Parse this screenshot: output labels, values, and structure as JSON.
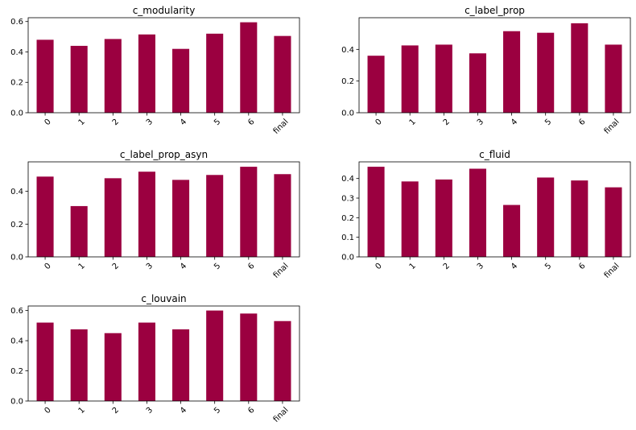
{
  "chart_data": [
    {
      "type": "bar",
      "title": "c_modularity",
      "categories": [
        "0",
        "1",
        "2",
        "3",
        "4",
        "5",
        "6",
        "final"
      ],
      "values": [
        0.48,
        0.44,
        0.485,
        0.515,
        0.42,
        0.52,
        0.595,
        0.505
      ],
      "ylim": [
        0,
        0.625
      ],
      "yticks": [
        "0.0",
        "0.2",
        "0.4",
        "0.6"
      ],
      "ytick_values": [
        0,
        0.2,
        0.4,
        0.6
      ],
      "color": "#9b0040"
    },
    {
      "type": "bar",
      "title": "c_label_prop",
      "categories": [
        "0",
        "1",
        "2",
        "3",
        "4",
        "5",
        "6",
        "final"
      ],
      "values": [
        0.36,
        0.425,
        0.43,
        0.375,
        0.515,
        0.505,
        0.565,
        0.43
      ],
      "ylim": [
        0,
        0.6
      ],
      "yticks": [
        "0.0",
        "0.2",
        "0.4"
      ],
      "ytick_values": [
        0,
        0.2,
        0.4
      ],
      "color": "#9b0040"
    },
    {
      "type": "bar",
      "title": "c_label_prop_asyn",
      "categories": [
        "0",
        "1",
        "2",
        "3",
        "4",
        "5",
        "6",
        "final"
      ],
      "values": [
        0.49,
        0.31,
        0.48,
        0.52,
        0.47,
        0.5,
        0.55,
        0.505
      ],
      "ylim": [
        0,
        0.58
      ],
      "yticks": [
        "0.0",
        "0.2",
        "0.4"
      ],
      "ytick_values": [
        0,
        0.2,
        0.4
      ],
      "color": "#9b0040"
    },
    {
      "type": "bar",
      "title": "c_fluid",
      "categories": [
        "0",
        "1",
        "2",
        "3",
        "4",
        "5",
        "6",
        "final"
      ],
      "values": [
        0.46,
        0.385,
        0.395,
        0.45,
        0.265,
        0.405,
        0.39,
        0.355
      ],
      "ylim": [
        0,
        0.485
      ],
      "yticks": [
        "0.0",
        "0.1",
        "0.2",
        "0.3",
        "0.4"
      ],
      "ytick_values": [
        0,
        0.1,
        0.2,
        0.3,
        0.4
      ],
      "color": "#9b0040"
    },
    {
      "type": "bar",
      "title": "c_louvain",
      "categories": [
        "0",
        "1",
        "2",
        "3",
        "4",
        "5",
        "6",
        "final"
      ],
      "values": [
        0.52,
        0.475,
        0.45,
        0.52,
        0.475,
        0.6,
        0.58,
        0.53
      ],
      "ylim": [
        0,
        0.63
      ],
      "yticks": [
        "0.0",
        "0.2",
        "0.4",
        "0.6"
      ],
      "ytick_values": [
        0,
        0.2,
        0.4,
        0.6
      ],
      "color": "#9b0040"
    }
  ]
}
